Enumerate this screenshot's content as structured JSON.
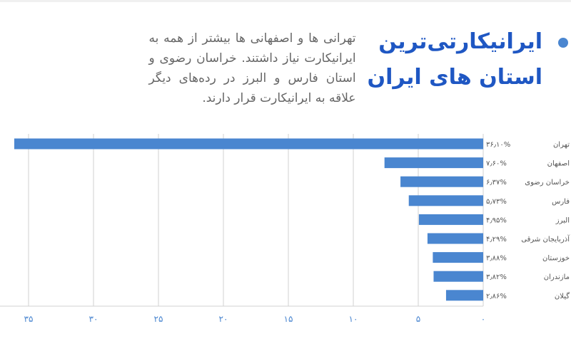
{
  "header": {
    "title_line1": "ایرانیکارتی‌ترین",
    "title_line2": "استان های ایران",
    "description": "تهرانی ها و اصفهانی ها بیشتر از همه به ایرانیکارت نیاز داشتند. خراسان رضوی و استان فارس و البرز در رده‌های دیگر علاقه به ایرانیکارت قرار دارند."
  },
  "colors": {
    "title": "#1f57c3",
    "bar": "#4a86d0",
    "grid": "#d0d0d0",
    "tick": "#4a86d0"
  },
  "chart_data": {
    "type": "bar",
    "orientation": "horizontal",
    "direction": "right-to-left",
    "categories": [
      "تهران",
      "اصفهان",
      "خراسان رضوی",
      "فارس",
      "البرز",
      "آذربایجان شرقی",
      "خوزستان",
      "مازندران",
      "گیلان"
    ],
    "values": [
      36.1,
      7.6,
      6.37,
      5.73,
      4.95,
      4.29,
      3.88,
      3.82,
      2.86
    ],
    "data_labels": [
      "۳۶٫۱۰%",
      "۷٫۶۰%",
      "۶٫۳۷%",
      "۵٫۷۳%",
      "۴٫۹۵%",
      "۴٫۲۹%",
      "۳٫۸۸%",
      "۳٫۸۲%",
      "۲٫۸۶%"
    ],
    "xticks": [
      0,
      5,
      10,
      15,
      20,
      25,
      30,
      35
    ],
    "xtick_labels": [
      "۰",
      "۵",
      "۱۰",
      "۱۵",
      "۲۰",
      "۲۵",
      "۳۰",
      "۳۵"
    ],
    "xlim": [
      0,
      37
    ],
    "grid": true,
    "legend": "none"
  }
}
